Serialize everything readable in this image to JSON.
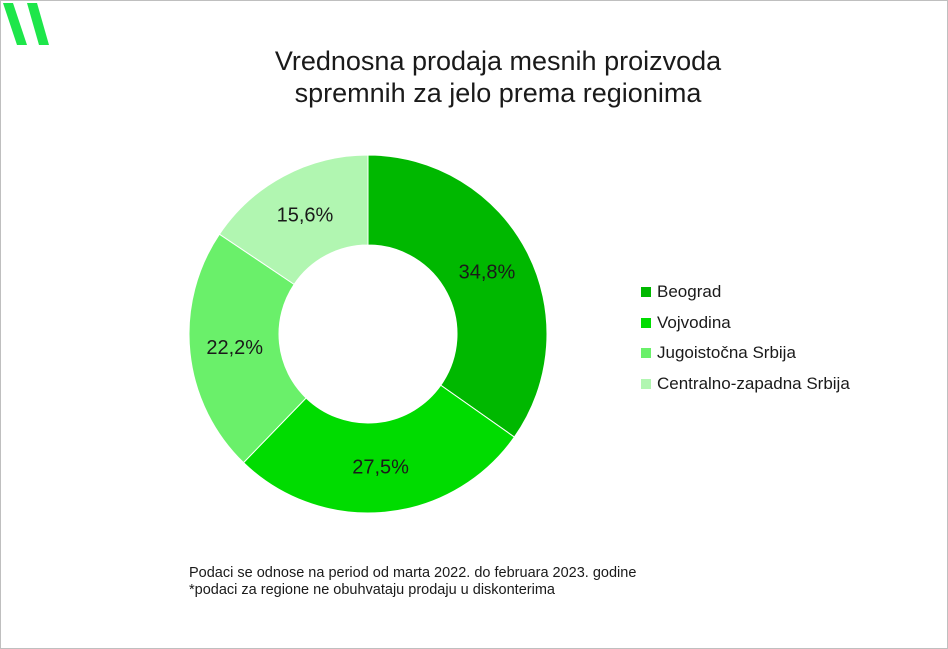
{
  "title_lines": [
    "Vrednosna prodaja mesnih proizvoda",
    "spremnih za jelo prema regionima"
  ],
  "notes": [
    "Podaci se odnose na period od marta 2022. do februara 2023. godine",
    "*podaci za regione ne obuhvataju prodaju u diskonterima"
  ],
  "logo": {
    "icon": "brand-logo-icon",
    "color": "#1ee64a"
  },
  "chart_data": {
    "type": "pie",
    "variant": "donut",
    "title": "Vrednosna prodaja mesnih proizvoda spremnih za jelo prema regionima",
    "legend_position": "right",
    "slices": [
      {
        "label": "Beograd",
        "value": 34.8,
        "display": "34,8%",
        "color": "#00b800"
      },
      {
        "label": "Vojvodina",
        "value": 27.5,
        "display": "27,5%",
        "color": "#00dc00"
      },
      {
        "label": "Jugoistočna Srbija",
        "value": 22.2,
        "display": "22,2%",
        "color": "#6af06a"
      },
      {
        "label": "Centralno-zapadna Srbija",
        "value": 15.6,
        "display": "15,6%",
        "color": "#b1f6b1"
      }
    ]
  }
}
